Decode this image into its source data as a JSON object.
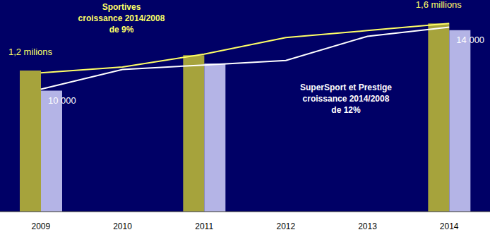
{
  "chart_data": {
    "type": "bar",
    "categories": [
      "2009",
      "2010",
      "2011",
      "2012",
      "2013",
      "2014"
    ],
    "ylim": [
      0,
      1.8
    ],
    "y2lim": [
      2000,
      16000
    ],
    "grid": false,
    "tick_labels": "x",
    "data_labels": true,
    "series": [
      {
        "name": "Sportives",
        "type": "bar",
        "color": "#a6a33c",
        "values": [
          1.2,
          null,
          1.33,
          null,
          null,
          1.6
        ],
        "value_labels": [
          "1,2 milions",
          null,
          null,
          null,
          null,
          "1,6 millions"
        ]
      },
      {
        "name": "SuperSport et Prestige",
        "type": "bar",
        "axis": "y2",
        "color": "#b4b4e6",
        "values": [
          10000,
          null,
          11800,
          null,
          null,
          14000
        ],
        "value_labels": [
          "10 000",
          null,
          null,
          null,
          null,
          "14 000"
        ]
      },
      {
        "name": "Sportives",
        "type": "line",
        "color": "#ffff66",
        "values": [
          1.18,
          1.23,
          1.34,
          1.48,
          1.54,
          1.6
        ]
      },
      {
        "name": "SuperSport et Prestige",
        "type": "line",
        "axis": "y2",
        "color": "#ffffff",
        "values": [
          10100,
          11400,
          11700,
          12000,
          13600,
          14200
        ]
      }
    ],
    "annotations": [
      {
        "text": [
          "Sportives",
          "croissance 2014/2008",
          "de 9%"
        ]
      },
      {
        "text": [
          "SuperSport et Prestige",
          "croissance 2014/2008",
          "de 12%"
        ]
      }
    ]
  }
}
